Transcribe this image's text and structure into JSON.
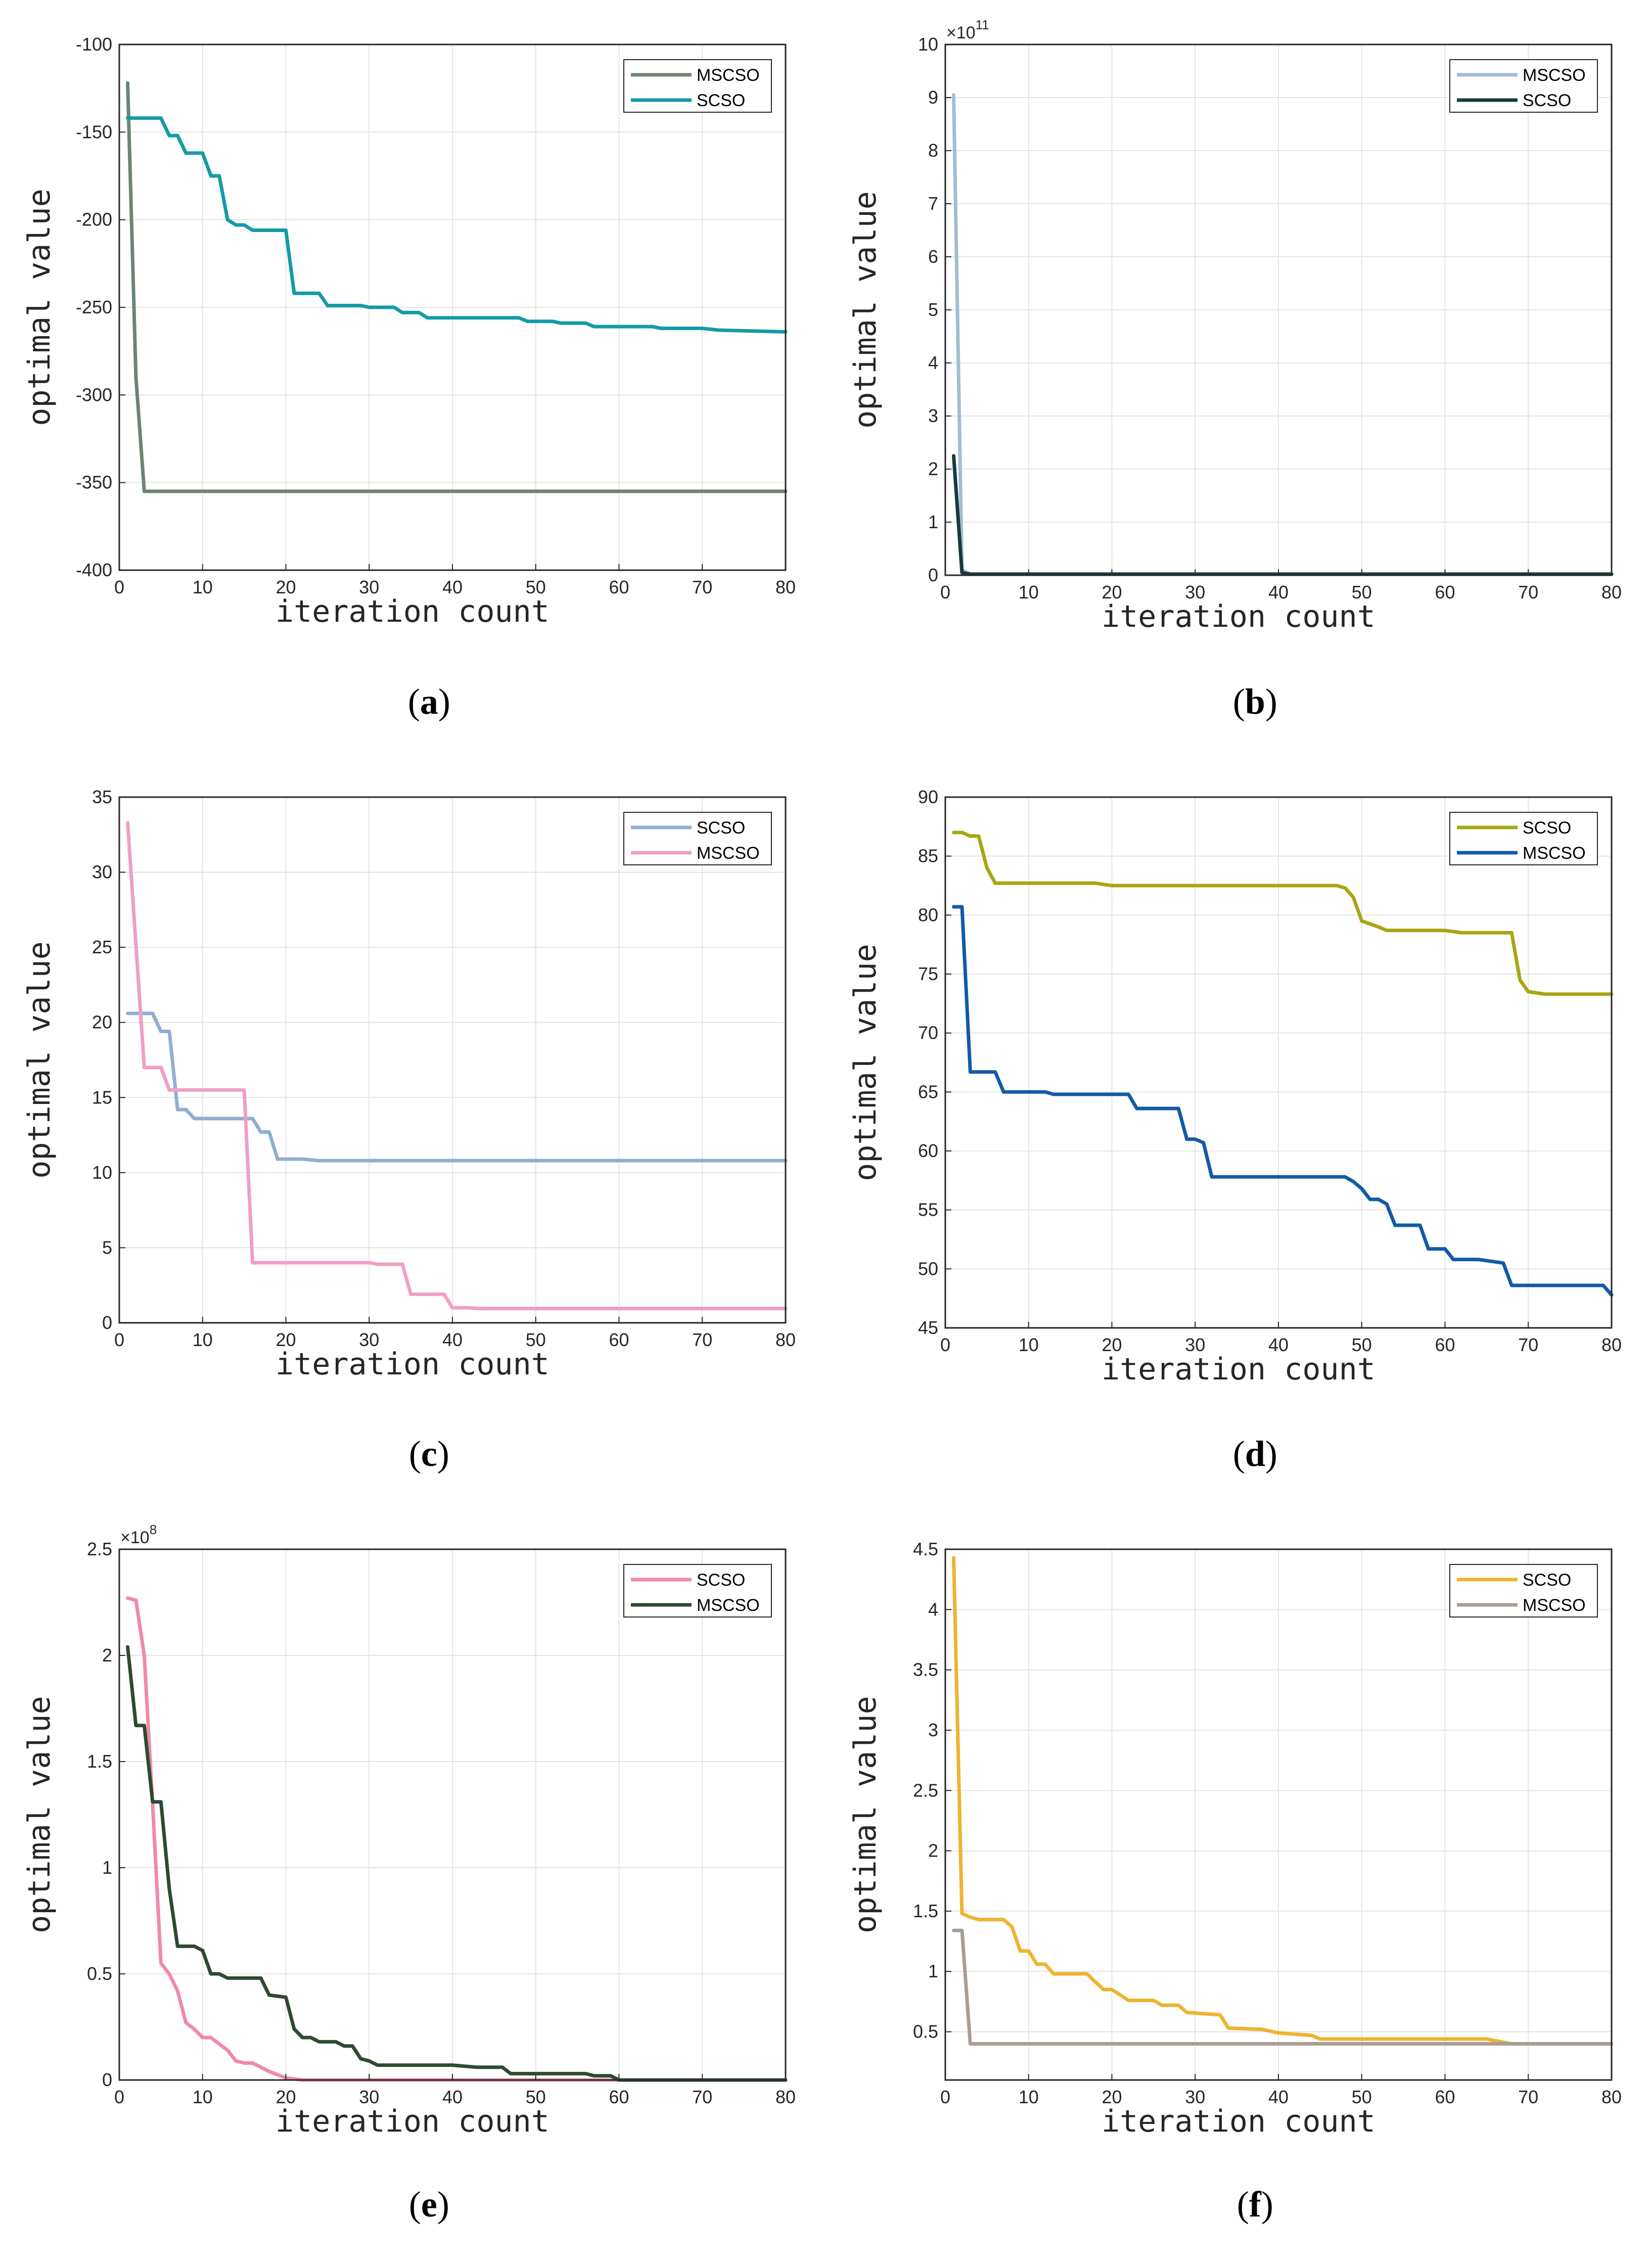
{
  "figure": {
    "panels": [
      "a",
      "b",
      "c",
      "d",
      "e",
      "f"
    ]
  },
  "chart_data": [
    {
      "id": "a",
      "type": "line",
      "label": "a",
      "xlabel": "iteration count",
      "ylabel": "optimal value",
      "xlim": [
        0,
        80
      ],
      "ylim": [
        -400,
        -100
      ],
      "xticks": [
        0,
        10,
        20,
        30,
        40,
        50,
        60,
        70,
        80
      ],
      "yticks": [
        -400,
        -350,
        -300,
        -250,
        -200,
        -150,
        -100
      ],
      "exponent": "",
      "grid": true,
      "legend_position": "top-right",
      "series": [
        {
          "name": "MSCSO",
          "color": "#6c8473",
          "points": [
            [
              1,
              -122
            ],
            [
              2,
              -290
            ],
            [
              3,
              -355
            ],
            [
              80,
              -355
            ]
          ]
        },
        {
          "name": "SCSO",
          "color": "#139ba7",
          "points": [
            [
              1,
              -142
            ],
            [
              5,
              -142
            ],
            [
              6,
              -152
            ],
            [
              7,
              -152
            ],
            [
              8,
              -162
            ],
            [
              10,
              -162
            ],
            [
              11,
              -175
            ],
            [
              12,
              -175
            ],
            [
              13,
              -200
            ],
            [
              14,
              -203
            ],
            [
              15,
              -203
            ],
            [
              16,
              -206
            ],
            [
              20,
              -206
            ],
            [
              21,
              -242
            ],
            [
              24,
              -242
            ],
            [
              25,
              -249
            ],
            [
              29,
              -249
            ],
            [
              30,
              -250
            ],
            [
              33,
              -250
            ],
            [
              34,
              -253
            ],
            [
              36,
              -253
            ],
            [
              37,
              -256
            ],
            [
              48,
              -256
            ],
            [
              49,
              -258
            ],
            [
              52,
              -258
            ],
            [
              53,
              -259
            ],
            [
              56,
              -259
            ],
            [
              57,
              -261
            ],
            [
              64,
              -261
            ],
            [
              65,
              -262
            ],
            [
              70,
              -262
            ],
            [
              72,
              -263
            ],
            [
              80,
              -264
            ]
          ]
        }
      ]
    },
    {
      "id": "b",
      "type": "line",
      "label": "b",
      "xlabel": "iteration count",
      "ylabel": "optimal value",
      "xlim": [
        0,
        80
      ],
      "ylim": [
        0,
        10
      ],
      "xticks": [
        0,
        10,
        20,
        30,
        40,
        50,
        60,
        70,
        80
      ],
      "yticks": [
        0,
        1,
        2,
        3,
        4,
        5,
        6,
        7,
        8,
        9,
        10
      ],
      "exponent": "×10",
      "exponent_power": "11",
      "grid": true,
      "legend_position": "top-right",
      "series": [
        {
          "name": "MSCSO",
          "color": "#a5bbd6",
          "points": [
            [
              1,
              9.05
            ],
            [
              2,
              0.1
            ],
            [
              3,
              0.02
            ],
            [
              80,
              0.02
            ]
          ]
        },
        {
          "name": "SCSO",
          "color": "#173b3d",
          "points": [
            [
              1,
              2.25
            ],
            [
              2,
              0.05
            ],
            [
              3,
              0.02
            ],
            [
              80,
              0.02
            ]
          ]
        }
      ]
    },
    {
      "id": "c",
      "type": "line",
      "label": "c",
      "xlabel": "iteration count",
      "ylabel": "optimal value",
      "xlim": [
        0,
        80
      ],
      "ylim": [
        0,
        35
      ],
      "xticks": [
        0,
        10,
        20,
        30,
        40,
        50,
        60,
        70,
        80
      ],
      "yticks": [
        0,
        5,
        10,
        15,
        20,
        25,
        30,
        35
      ],
      "exponent": "",
      "grid": true,
      "legend_position": "top-right",
      "series": [
        {
          "name": "SCSO",
          "color": "#91aed0",
          "points": [
            [
              1,
              20.6
            ],
            [
              4,
              20.6
            ],
            [
              5,
              19.4
            ],
            [
              6,
              19.4
            ],
            [
              7,
              14.2
            ],
            [
              8,
              14.2
            ],
            [
              9,
              13.6
            ],
            [
              16,
              13.6
            ],
            [
              17,
              12.7
            ],
            [
              18,
              12.7
            ],
            [
              19,
              10.9
            ],
            [
              22,
              10.9
            ],
            [
              24,
              10.8
            ],
            [
              80,
              10.8
            ]
          ]
        },
        {
          "name": "MSCSO",
          "color": "#ef9fc5",
          "points": [
            [
              1,
              33.3
            ],
            [
              3,
              17
            ],
            [
              5,
              17
            ],
            [
              6,
              15.5
            ],
            [
              15,
              15.5
            ],
            [
              16,
              4
            ],
            [
              30,
              4
            ],
            [
              31,
              3.9
            ],
            [
              34,
              3.9
            ],
            [
              35,
              1.9
            ],
            [
              39,
              1.9
            ],
            [
              40,
              1
            ],
            [
              42,
              1
            ],
            [
              43,
              0.95
            ],
            [
              80,
              0.95
            ]
          ]
        }
      ]
    },
    {
      "id": "d",
      "type": "line",
      "label": "d",
      "xlabel": "iteration count",
      "ylabel": "optimal value",
      "xlim": [
        0,
        80
      ],
      "ylim": [
        45,
        90
      ],
      "xticks": [
        0,
        10,
        20,
        30,
        40,
        50,
        60,
        70,
        80
      ],
      "yticks": [
        45,
        50,
        55,
        60,
        65,
        70,
        75,
        80,
        85,
        90
      ],
      "exponent": "",
      "grid": true,
      "legend_position": "top-right",
      "series": [
        {
          "name": "SCSO",
          "color": "#a8a614",
          "points": [
            [
              1,
              87
            ],
            [
              2,
              87
            ],
            [
              3,
              86.7
            ],
            [
              4,
              86.7
            ],
            [
              5,
              84
            ],
            [
              6,
              82.7
            ],
            [
              18,
              82.7
            ],
            [
              20,
              82.5
            ],
            [
              47,
              82.5
            ],
            [
              48,
              82.3
            ],
            [
              49,
              81.5
            ],
            [
              50,
              79.5
            ],
            [
              52,
              79
            ],
            [
              53,
              78.7
            ],
            [
              60,
              78.7
            ],
            [
              62,
              78.5
            ],
            [
              68,
              78.5
            ],
            [
              69,
              74.5
            ],
            [
              70,
              73.5
            ],
            [
              72,
              73.3
            ],
            [
              80,
              73.3
            ]
          ]
        },
        {
          "name": "MSCSO",
          "color": "#125aa6",
          "points": [
            [
              1,
              80.7
            ],
            [
              2,
              80.7
            ],
            [
              3,
              66.7
            ],
            [
              6,
              66.7
            ],
            [
              7,
              65
            ],
            [
              12,
              65
            ],
            [
              13,
              64.8
            ],
            [
              22,
              64.8
            ],
            [
              23,
              63.6
            ],
            [
              28,
              63.6
            ],
            [
              29,
              61
            ],
            [
              30,
              61
            ],
            [
              31,
              60.7
            ],
            [
              32,
              57.8
            ],
            [
              48,
              57.8
            ],
            [
              49,
              57.4
            ],
            [
              50,
              56.8
            ],
            [
              51,
              55.9
            ],
            [
              52,
              55.9
            ],
            [
              53,
              55.5
            ],
            [
              54,
              53.7
            ],
            [
              57,
              53.7
            ],
            [
              58,
              51.7
            ],
            [
              60,
              51.7
            ],
            [
              61,
              50.8
            ],
            [
              64,
              50.8
            ],
            [
              67,
              50.5
            ],
            [
              68,
              48.6
            ],
            [
              79,
              48.6
            ],
            [
              80,
              47.8
            ]
          ]
        }
      ]
    },
    {
      "id": "e",
      "type": "line",
      "label": "e",
      "xlabel": "iteration count",
      "ylabel": "optimal value",
      "xlim": [
        0,
        80
      ],
      "ylim": [
        0,
        2.5
      ],
      "xticks": [
        0,
        10,
        20,
        30,
        40,
        50,
        60,
        70,
        80
      ],
      "yticks": [
        0,
        0.5,
        1,
        1.5,
        2,
        2.5
      ],
      "exponent": "×10",
      "exponent_power": "8",
      "grid": true,
      "legend_position": "top-right",
      "series": [
        {
          "name": "SCSO",
          "color": "#f08aa6",
          "points": [
            [
              1,
              2.27
            ],
            [
              2,
              2.26
            ],
            [
              3,
              2.0
            ],
            [
              4,
              1.3
            ],
            [
              5,
              0.55
            ],
            [
              6,
              0.5
            ],
            [
              7,
              0.42
            ],
            [
              8,
              0.27
            ],
            [
              9,
              0.24
            ],
            [
              10,
              0.2
            ],
            [
              11,
              0.2
            ],
            [
              12,
              0.17
            ],
            [
              13,
              0.14
            ],
            [
              14,
              0.09
            ],
            [
              15,
              0.08
            ],
            [
              16,
              0.08
            ],
            [
              17,
              0.06
            ],
            [
              18,
              0.04
            ],
            [
              20,
              0.01
            ],
            [
              22,
              0
            ],
            [
              80,
              0
            ]
          ]
        },
        {
          "name": "MSCSO",
          "color": "#2e4a30",
          "points": [
            [
              1,
              2.04
            ],
            [
              2,
              1.67
            ],
            [
              3,
              1.67
            ],
            [
              4,
              1.31
            ],
            [
              5,
              1.31
            ],
            [
              6,
              0.9
            ],
            [
              7,
              0.63
            ],
            [
              9,
              0.63
            ],
            [
              10,
              0.61
            ],
            [
              11,
              0.5
            ],
            [
              12,
              0.5
            ],
            [
              13,
              0.48
            ],
            [
              17,
              0.48
            ],
            [
              18,
              0.4
            ],
            [
              20,
              0.39
            ],
            [
              21,
              0.24
            ],
            [
              22,
              0.2
            ],
            [
              23,
              0.2
            ],
            [
              24,
              0.18
            ],
            [
              26,
              0.18
            ],
            [
              27,
              0.16
            ],
            [
              28,
              0.16
            ],
            [
              29,
              0.1
            ],
            [
              30,
              0.09
            ],
            [
              31,
              0.07
            ],
            [
              40,
              0.07
            ],
            [
              43,
              0.06
            ],
            [
              46,
              0.06
            ],
            [
              47,
              0.03
            ],
            [
              56,
              0.03
            ],
            [
              57,
              0.02
            ],
            [
              59,
              0.02
            ],
            [
              60,
              0
            ],
            [
              80,
              0
            ]
          ]
        }
      ]
    },
    {
      "id": "f",
      "type": "line",
      "label": "f",
      "xlabel": "iteration count",
      "ylabel": "optimal value",
      "xlim": [
        0,
        80
      ],
      "ylim": [
        0.1,
        4.5
      ],
      "xticks": [
        0,
        10,
        20,
        30,
        40,
        50,
        60,
        70,
        80
      ],
      "yticks": [
        0.5,
        1,
        1.5,
        2,
        2.5,
        3,
        3.5,
        4,
        4.5
      ],
      "exponent": "",
      "grid": true,
      "legend_position": "top-right",
      "series": [
        {
          "name": "SCSO",
          "color": "#eeb330",
          "points": [
            [
              1,
              4.43
            ],
            [
              2,
              1.48
            ],
            [
              3,
              1.45
            ],
            [
              4,
              1.43
            ],
            [
              7,
              1.43
            ],
            [
              8,
              1.37
            ],
            [
              9,
              1.17
            ],
            [
              10,
              1.17
            ],
            [
              11,
              1.06
            ],
            [
              12,
              1.06
            ],
            [
              13,
              0.98
            ],
            [
              17,
              0.98
            ],
            [
              19,
              0.85
            ],
            [
              20,
              0.85
            ],
            [
              22,
              0.76
            ],
            [
              25,
              0.76
            ],
            [
              26,
              0.72
            ],
            [
              28,
              0.72
            ],
            [
              29,
              0.66
            ],
            [
              33,
              0.64
            ],
            [
              34,
              0.53
            ],
            [
              38,
              0.52
            ],
            [
              40,
              0.49
            ],
            [
              44,
              0.47
            ],
            [
              45,
              0.44
            ],
            [
              65,
              0.44
            ],
            [
              68,
              0.4
            ],
            [
              80,
              0.4
            ]
          ]
        },
        {
          "name": "MSCSO",
          "color": "#a89c94",
          "points": [
            [
              1,
              1.34
            ],
            [
              2,
              1.34
            ],
            [
              3,
              0.4
            ],
            [
              80,
              0.4
            ]
          ]
        }
      ]
    }
  ]
}
